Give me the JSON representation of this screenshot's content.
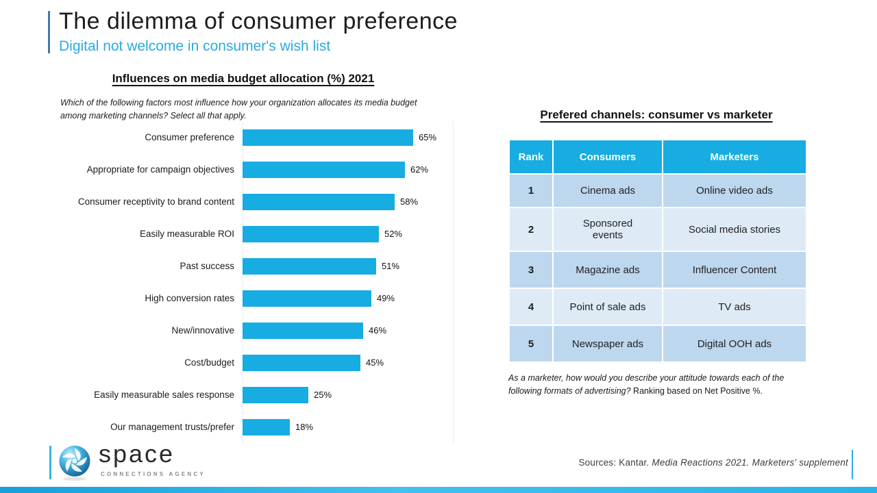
{
  "header": {
    "title": "The dilemma of consumer preference",
    "subtitle": "Digital not welcome in consumer's wish list"
  },
  "chart_data": [
    {
      "type": "bar",
      "orientation": "horizontal",
      "title": "Influences on media budget allocation (%) 2021",
      "question": "Which of the following factors most influence how your organization allocates its media budget among marketing channels? Select all that apply.",
      "categories": [
        "Consumer preference",
        "Appropriate for campaign objectives",
        "Consumer receptivity to brand content",
        "Easily measurable ROI",
        "Past success",
        "High conversion rates",
        "New/innovative",
        "Cost/budget",
        "Easily measurable sales response",
        "Our management trusts/prefer"
      ],
      "values": [
        65,
        62,
        58,
        52,
        51,
        49,
        46,
        45,
        25,
        18
      ],
      "data_labels": [
        "65%",
        "62%",
        "58%",
        "52%",
        "51%",
        "49%",
        "46%",
        "45%",
        "25%",
        "18%"
      ],
      "unit": "%",
      "xlim": [
        0,
        80
      ],
      "bar_color": "#17ACE2",
      "grid": "minimal"
    },
    {
      "type": "table",
      "title": "Prefered channels: consumer vs marketer",
      "columns": [
        "Rank",
        "Consumers",
        "Marketers"
      ],
      "rows": [
        [
          "1",
          "Cinema ads",
          "Online video ads"
        ],
        [
          "2",
          "Sponsored\nevents",
          "Social media stories"
        ],
        [
          "3",
          "Magazine ads",
          "Influencer Content"
        ],
        [
          "4",
          "Point of sale ads",
          "TV ads"
        ],
        [
          "5",
          "Newspaper ads",
          "Digital OOH ads"
        ]
      ],
      "header_bg": "#17ACE2",
      "row_colors": [
        "#BDD7EE",
        "#DEEBF7"
      ]
    }
  ],
  "table_footnote": {
    "italic": "As a marketer, how would you describe your attitude towards each of the following formats of advertising?",
    "regular": " Ranking based on Net Positive %."
  },
  "footer": {
    "logo_name": "space",
    "logo_tagline": "CONNECTIONS AGENCY",
    "sources_prefix": "Sources: Kantar.",
    "sources_italic": " Media Reactions 2021. Marketers' supplement"
  },
  "colors": {
    "accent_cyan": "#17ACE2",
    "subtitle_cyan": "#29ABE2",
    "header_accent_blue": "#4578ad",
    "table_row_dark": "#BDD7EE",
    "table_row_light": "#DEEBF7"
  }
}
